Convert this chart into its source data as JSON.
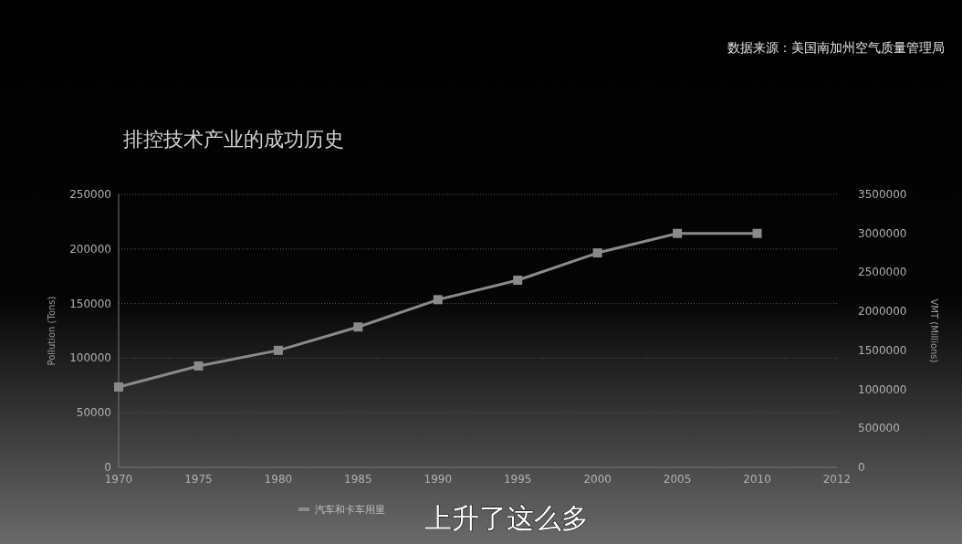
{
  "chart_data": {
    "type": "line",
    "title": "排控技术产业的成功历史",
    "ylabel": "Pollution (Tons)",
    "y2label": "VMT (Millions)",
    "annotations": [
      "数据来源：美国南加州空气质量管理局",
      "上升了这么多"
    ],
    "categories": [
      "1970",
      "1975",
      "1980",
      "1985",
      "1990",
      "1995",
      "2000",
      "2005",
      "2010",
      "2012"
    ],
    "series": [
      {
        "name": "汽车和卡车用里",
        "color": "#8a8a8a",
        "axis": "y2",
        "values": [
          1030000,
          1300000,
          1500000,
          1800000,
          2150000,
          2400000,
          2750000,
          3000000,
          3000000,
          null
        ]
      }
    ],
    "ylim": [
      0,
      250000
    ],
    "yticks": [
      0,
      50000,
      100000,
      150000,
      200000,
      250000
    ],
    "y2lim": [
      0,
      3500000
    ],
    "y2ticks": [
      0,
      500000,
      1000000,
      1500000,
      2000000,
      2500000,
      3000000,
      3500000
    ],
    "grid": "y",
    "legend": "bottom",
    "marker": "square",
    "line_style": "solid"
  }
}
